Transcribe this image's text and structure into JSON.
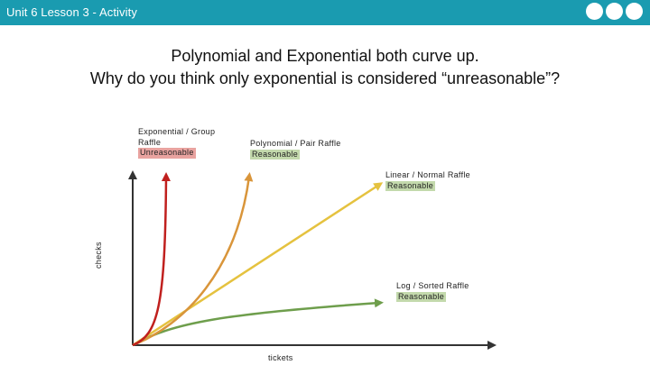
{
  "header": {
    "title": "Unit 6 Lesson 3 - Activity"
  },
  "question": {
    "line1": "Polynomial and Exponential both curve up.",
    "line2": "Why do you think only exponential is considered “unreasonable”?"
  },
  "axes": {
    "xlabel": "tickets",
    "ylabel": "checks"
  },
  "curves": [
    {
      "id": "exponential",
      "name": "Exponential / Group Raffle",
      "tag": "Unreasonable",
      "color": "#c0201e"
    },
    {
      "id": "polynomial",
      "name": "Polynomial / Pair Raffle",
      "tag": "Reasonable",
      "color": "#d9953a"
    },
    {
      "id": "linear",
      "name": "Linear / Normal Raffle",
      "tag": "Reasonable",
      "color": "#e5c23f"
    },
    {
      "id": "log",
      "name": "Log / Sorted Raffle",
      "tag": "Reasonable",
      "color": "#6e9e4c"
    }
  ]
}
